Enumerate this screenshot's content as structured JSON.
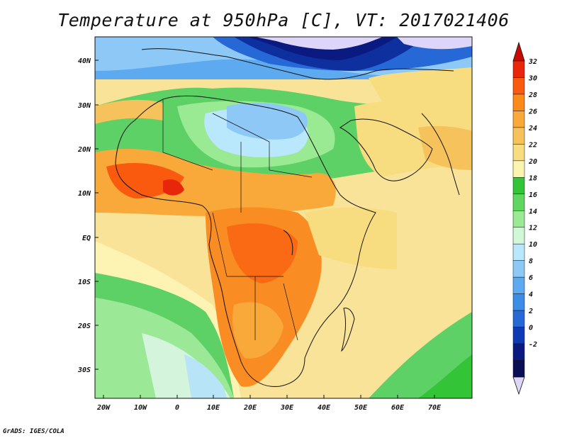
{
  "title": "Temperature at 950hPa [C], VT: 2017021406",
  "footer": "GrADS: IGES/COLA",
  "x_ticks": [
    "20W",
    "10W",
    "0",
    "10E",
    "20E",
    "30E",
    "40E",
    "50E",
    "60E",
    "70E"
  ],
  "y_ticks": [
    "40N",
    "30N",
    "20N",
    "10N",
    "EQ",
    "10S",
    "20S",
    "30S"
  ],
  "colorbar": {
    "labels": [
      "32",
      "30",
      "28",
      "26",
      "24",
      "22",
      "20",
      "18",
      "16",
      "14",
      "12",
      "10",
      "8",
      "6",
      "4",
      "2",
      "0",
      "-2"
    ],
    "colors": [
      "#e8260b",
      "#fa5a0d",
      "#fb8a18",
      "#f9a83a",
      "#f6c25c",
      "#f8dd80",
      "#fdf4b0",
      "#34c438",
      "#5fd660",
      "#9ae993",
      "#d2f7d8",
      "#b9e7fb",
      "#8ec8f6",
      "#5eaaf0",
      "#3b8de8",
      "#2568d6",
      "#0e3ab5",
      "#0a1a80",
      "#0a0f55"
    ],
    "top_arrow_color": "#c80a04",
    "bottom_arrow_color": "#ddd6f8"
  },
  "regions": [
    {
      "name": "ocean-south-atlantic",
      "color": "#a5dfa0"
    },
    {
      "name": "ocean-southwest",
      "color": "#5ed166"
    },
    {
      "name": "ocean-indian",
      "color": "#fdf0ad"
    },
    {
      "name": "west-africa-hot",
      "color": "#fa9928"
    },
    {
      "name": "central-africa-hot",
      "color": "#f98d24"
    },
    {
      "name": "sahara",
      "color": "#9bd895"
    },
    {
      "name": "mediterranean",
      "color": "#3a8de8"
    },
    {
      "name": "europe-cold",
      "color": "#0e2f9e"
    },
    {
      "name": "arabia",
      "color": "#f7c565"
    }
  ]
}
